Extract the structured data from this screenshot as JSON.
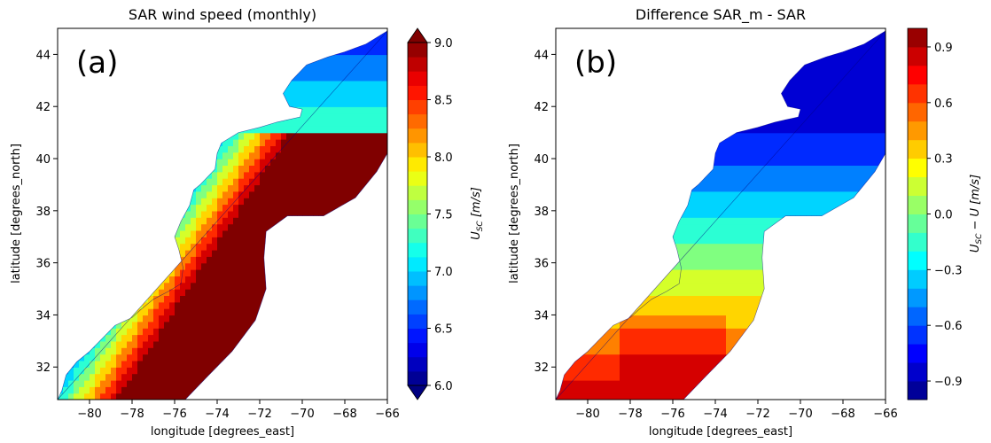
{
  "chart_data": [
    {
      "type": "heatmap",
      "panel_label": "(a)",
      "title": "SAR wind speed (monthly)",
      "xlabel": "longitude [degrees_east]",
      "ylabel": "latitude [degrees_north]",
      "xlim": [
        -81.5,
        -66
      ],
      "ylim": [
        30.75,
        45
      ],
      "xticks": [
        -80,
        -78,
        -76,
        -74,
        -72,
        -70,
        -68,
        -66
      ],
      "yticks": [
        32,
        34,
        36,
        38,
        40,
        42,
        44
      ],
      "colorbar": {
        "label": "U_SC [m/s]",
        "label_main": "U",
        "label_sub": "SC",
        "label_unit": " [m/s]",
        "range": [
          6.0,
          9.0
        ],
        "ticks": [
          6.0,
          6.5,
          7.0,
          7.5,
          8.0,
          8.5,
          9.0
        ],
        "extend": "both",
        "colormap": "jet",
        "levels": 24
      },
      "features": {
        "nearshore_value": 6.0,
        "offshore_band_value": 9.0,
        "offshore_band_location": "shelf edge from 32N,-77 to 40N,-67"
      }
    },
    {
      "type": "heatmap",
      "panel_label": "(b)",
      "title": "Difference SAR_m - SAR",
      "xlabel": "longitude [degrees_east]",
      "ylabel": "latitude [degrees_north]",
      "xlim": [
        -81.5,
        -66
      ],
      "ylim": [
        30.75,
        45
      ],
      "xticks": [
        -80,
        -78,
        -76,
        -74,
        -72,
        -70,
        -68,
        -66
      ],
      "yticks": [
        32,
        34,
        36,
        38,
        40,
        42,
        44
      ],
      "colorbar": {
        "label": "U_SC - U [m/s]",
        "label_main": "U",
        "label_sub": "SC",
        "label_unit": " − U [m/s]",
        "range": [
          -1.0,
          1.0
        ],
        "ticks": [
          -0.9,
          -0.6,
          -0.3,
          0.0,
          0.3,
          0.6,
          0.9
        ],
        "extend": "neither",
        "colormap": "jet",
        "levels": 20
      },
      "features": {
        "north_value": -0.6,
        "south_value": 0.6,
        "max_value_location": "32.5N,-76.5"
      }
    }
  ]
}
